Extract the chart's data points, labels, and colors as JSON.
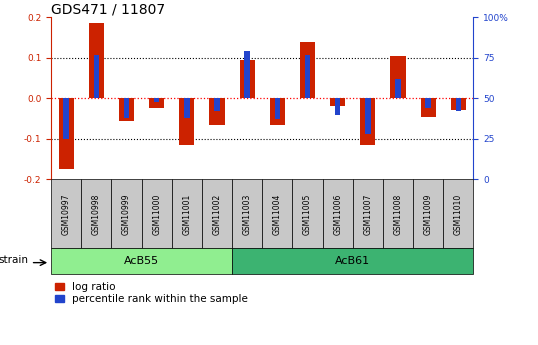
{
  "title": "GDS471 / 11807",
  "samples": [
    "GSM10997",
    "GSM10998",
    "GSM10999",
    "GSM11000",
    "GSM11001",
    "GSM11002",
    "GSM11003",
    "GSM11004",
    "GSM11005",
    "GSM11006",
    "GSM11007",
    "GSM11008",
    "GSM11009",
    "GSM11010"
  ],
  "log_ratio": [
    -0.175,
    0.185,
    -0.055,
    -0.025,
    -0.115,
    -0.065,
    0.095,
    -0.065,
    0.14,
    -0.02,
    -0.115,
    0.105,
    -0.045,
    -0.03
  ],
  "percentile_rank": [
    25,
    77,
    38,
    48,
    38,
    42,
    79,
    37,
    77,
    40,
    28,
    62,
    44,
    42
  ],
  "groups": [
    {
      "label": "AcB55",
      "start": 0,
      "end": 5,
      "color": "#90EE90"
    },
    {
      "label": "AcB61",
      "start": 6,
      "end": 13,
      "color": "#3CB371"
    }
  ],
  "ylim": [
    -0.2,
    0.2
  ],
  "yticks_left": [
    -0.2,
    -0.1,
    0.0,
    0.1,
    0.2
  ],
  "yticks_right": [
    0,
    25,
    50,
    75,
    100
  ],
  "bar_color_red": "#CC2200",
  "bar_color_blue": "#2244CC",
  "bar_width": 0.5,
  "blue_bar_width": 0.18,
  "legend_red": "log ratio",
  "legend_blue": "percentile rank within the sample",
  "strain_label": "strain",
  "sample_box_color": "#C8C8C8",
  "title_fontsize": 10,
  "tick_fontsize": 6.5,
  "sample_fontsize": 5.5,
  "group_fontsize": 8,
  "legend_fontsize": 7.5
}
